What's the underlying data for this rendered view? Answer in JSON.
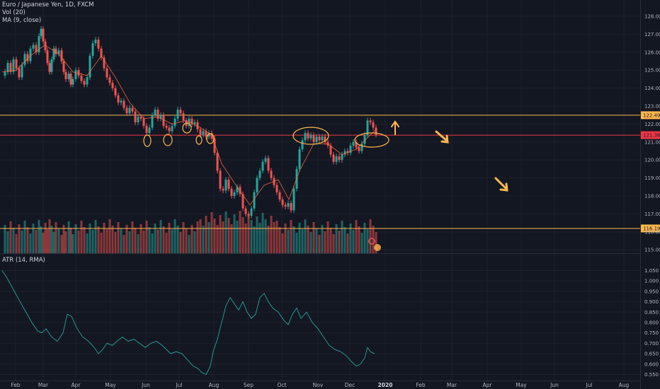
{
  "header": {
    "symbol_line": "Euro / Japanese Yen, 1D, FXCM",
    "vol_line": "Vol (20)",
    "ma_line": "MA (9, close)",
    "atr_line": "ATR (14, RMA)"
  },
  "levels": [
    {
      "value": 122.493,
      "label": "122.493",
      "color": "#ffb74d"
    },
    {
      "value": 121.383,
      "label": "121.383",
      "color": "#f23645"
    },
    {
      "value": 116.19,
      "label": "116.190",
      "color": "#ffb74d"
    }
  ],
  "chart_data": {
    "type": "line",
    "price_axis": {
      "ticks": [
        "128.000",
        "127.000",
        "126.000",
        "125.000",
        "124.000",
        "123.000",
        "122.000",
        "121.000",
        "120.000",
        "119.000",
        "118.000",
        "117.000",
        "116.000",
        "115.000"
      ],
      "ylim": [
        114.6,
        128.5
      ]
    },
    "atr_axis": {
      "ticks": [
        "1.050",
        "1.000",
        "0.950",
        "0.900",
        "0.850",
        "0.800",
        "0.750",
        "0.700",
        "0.650",
        "0.600",
        "0.550"
      ],
      "ylim": [
        0.53,
        1.07
      ]
    },
    "x_labels": [
      {
        "label": "Feb",
        "bold": false
      },
      {
        "label": "Mar",
        "bold": false
      },
      {
        "label": "Apr",
        "bold": false
      },
      {
        "label": "May",
        "bold": false
      },
      {
        "label": "Jun",
        "bold": false
      },
      {
        "label": "Jul",
        "bold": false
      },
      {
        "label": "Aug",
        "bold": false
      },
      {
        "label": "Sep",
        "bold": false
      },
      {
        "label": "Oct",
        "bold": false
      },
      {
        "label": "Nov",
        "bold": false
      },
      {
        "label": "Dec",
        "bold": false
      },
      {
        "label": "2020",
        "bold": true
      },
      {
        "label": "Feb",
        "bold": false
      },
      {
        "label": "Mar",
        "bold": false
      },
      {
        "label": "Apr",
        "bold": false
      },
      {
        "label": "May",
        "bold": false
      },
      {
        "label": "Jun",
        "bold": false
      },
      {
        "label": "Jul",
        "bold": false
      },
      {
        "label": "Aug",
        "bold": false
      }
    ],
    "price_path": [
      [
        0,
        124.7
      ],
      [
        4,
        124.9
      ],
      [
        8,
        125.4
      ],
      [
        12,
        124.9
      ],
      [
        16,
        125.6
      ],
      [
        20,
        125.1
      ],
      [
        24,
        124.6
      ],
      [
        28,
        125.3
      ],
      [
        32,
        125.9
      ],
      [
        36,
        125.5
      ],
      [
        40,
        126.2
      ],
      [
        44,
        126.4
      ],
      [
        48,
        126.0
      ],
      [
        52,
        126.9
      ],
      [
        55,
        127.3
      ],
      [
        58,
        126.6
      ],
      [
        61,
        126.1
      ],
      [
        64,
        125.4
      ],
      [
        67,
        124.9
      ],
      [
        70,
        125.6
      ],
      [
        73,
        126.2
      ],
      [
        76,
        125.9
      ],
      [
        80,
        126.1
      ],
      [
        84,
        125.5
      ],
      [
        87,
        124.9
      ],
      [
        90,
        124.5
      ],
      [
        94,
        124.8
      ],
      [
        97,
        124.2
      ],
      [
        100,
        124.5
      ],
      [
        104,
        125.0
      ],
      [
        108,
        124.7
      ],
      [
        112,
        124.4
      ],
      [
        116,
        124.2
      ],
      [
        120,
        124.6
      ],
      [
        124,
        125.8
      ],
      [
        128,
        126.5
      ],
      [
        132,
        126.7
      ],
      [
        136,
        126.2
      ],
      [
        140,
        125.7
      ],
      [
        144,
        125.1
      ],
      [
        148,
        124.6
      ],
      [
        152,
        124.3
      ],
      [
        156,
        124.0
      ],
      [
        160,
        123.6
      ],
      [
        164,
        123.2
      ],
      [
        168,
        123.3
      ],
      [
        172,
        122.9
      ],
      [
        176,
        122.6
      ],
      [
        180,
        122.9
      ],
      [
        184,
        122.7
      ],
      [
        188,
        122.1
      ],
      [
        192,
        122.4
      ],
      [
        196,
        122.3
      ],
      [
        200,
        121.9
      ],
      [
        204,
        121.5
      ],
      [
        208,
        121.8
      ],
      [
        212,
        122.5
      ],
      [
        216,
        122.8
      ],
      [
        220,
        122.3
      ],
      [
        224,
        122.5
      ],
      [
        228,
        121.9
      ],
      [
        232,
        121.8
      ],
      [
        236,
        121.6
      ],
      [
        240,
        121.9
      ],
      [
        244,
        122.3
      ],
      [
        248,
        122.8
      ],
      [
        252,
        122.6
      ],
      [
        256,
        122.2
      ],
      [
        260,
        121.9
      ],
      [
        264,
        122.3
      ],
      [
        268,
        122.0
      ],
      [
        272,
        122.1
      ],
      [
        276,
        121.7
      ],
      [
        280,
        121.4
      ],
      [
        284,
        121.6
      ],
      [
        288,
        121.3
      ],
      [
        292,
        121.5
      ],
      [
        296,
        121.2
      ],
      [
        300,
        120.4
      ],
      [
        304,
        119.4
      ],
      [
        308,
        118.4
      ],
      [
        312,
        118.3
      ],
      [
        316,
        118.9
      ],
      [
        320,
        118.4
      ],
      [
        324,
        118.0
      ],
      [
        328,
        118.2
      ],
      [
        332,
        118.5
      ],
      [
        336,
        118.1
      ],
      [
        340,
        117.3
      ],
      [
        344,
        117.0
      ],
      [
        348,
        116.9
      ],
      [
        352,
        117.3
      ],
      [
        356,
        118.2
      ],
      [
        360,
        119.0
      ],
      [
        364,
        119.4
      ],
      [
        368,
        119.9
      ],
      [
        372,
        120.1
      ],
      [
        376,
        119.4
      ],
      [
        380,
        119.0
      ],
      [
        384,
        118.6
      ],
      [
        388,
        118.2
      ],
      [
        392,
        117.8
      ],
      [
        396,
        117.5
      ],
      [
        400,
        117.4
      ],
      [
        404,
        117.6
      ],
      [
        408,
        117.2
      ],
      [
        412,
        118.4
      ],
      [
        416,
        119.5
      ],
      [
        420,
        120.6
      ],
      [
        424,
        121.1
      ],
      [
        428,
        121.5
      ],
      [
        432,
        121.2
      ],
      [
        436,
        121.4
      ],
      [
        440,
        121.0
      ],
      [
        444,
        121.3
      ],
      [
        448,
        121.1
      ],
      [
        452,
        121.3
      ],
      [
        456,
        121.0
      ],
      [
        460,
        120.8
      ],
      [
        464,
        120.3
      ],
      [
        468,
        119.9
      ],
      [
        472,
        120.2
      ],
      [
        476,
        120.0
      ],
      [
        480,
        120.3
      ],
      [
        484,
        120.5
      ],
      [
        488,
        120.4
      ],
      [
        492,
        120.8
      ],
      [
        496,
        121.0
      ],
      [
        500,
        120.7
      ],
      [
        504,
        120.5
      ],
      [
        508,
        120.9
      ],
      [
        512,
        121.4
      ],
      [
        516,
        122.2
      ],
      [
        520,
        122.1
      ],
      [
        524,
        121.8
      ],
      [
        528,
        121.4
      ]
    ],
    "ma_path": [
      [
        0,
        124.9
      ],
      [
        20,
        125.0
      ],
      [
        40,
        125.8
      ],
      [
        60,
        126.4
      ],
      [
        80,
        125.9
      ],
      [
        100,
        124.9
      ],
      [
        120,
        124.7
      ],
      [
        140,
        125.8
      ],
      [
        160,
        124.6
      ],
      [
        180,
        123.2
      ],
      [
        200,
        122.3
      ],
      [
        220,
        122.4
      ],
      [
        240,
        122.0
      ],
      [
        260,
        122.2
      ],
      [
        280,
        121.8
      ],
      [
        296,
        121.4
      ],
      [
        310,
        119.8
      ],
      [
        330,
        118.6
      ],
      [
        350,
        117.5
      ],
      [
        370,
        118.6
      ],
      [
        390,
        118.9
      ],
      [
        405,
        117.8
      ],
      [
        420,
        119.4
      ],
      [
        440,
        120.9
      ],
      [
        460,
        120.9
      ],
      [
        480,
        120.3
      ],
      [
        500,
        120.6
      ],
      [
        515,
        121.2
      ],
      [
        528,
        121.7
      ]
    ],
    "atr_path": [
      [
        0,
        1.05
      ],
      [
        6,
        1.02
      ],
      [
        14,
        0.97
      ],
      [
        22,
        0.92
      ],
      [
        32,
        0.86
      ],
      [
        42,
        0.8
      ],
      [
        50,
        0.76
      ],
      [
        56,
        0.75
      ],
      [
        62,
        0.77
      ],
      [
        70,
        0.73
      ],
      [
        78,
        0.71
      ],
      [
        86,
        0.75
      ],
      [
        92,
        0.84
      ],
      [
        98,
        0.83
      ],
      [
        106,
        0.77
      ],
      [
        114,
        0.73
      ],
      [
        122,
        0.71
      ],
      [
        130,
        0.68
      ],
      [
        136,
        0.65
      ],
      [
        142,
        0.67
      ],
      [
        148,
        0.7
      ],
      [
        156,
        0.69
      ],
      [
        162,
        0.71
      ],
      [
        170,
        0.73
      ],
      [
        178,
        0.71
      ],
      [
        186,
        0.72
      ],
      [
        194,
        0.7
      ],
      [
        202,
        0.68
      ],
      [
        210,
        0.7
      ],
      [
        218,
        0.71
      ],
      [
        226,
        0.69
      ],
      [
        232,
        0.67
      ],
      [
        238,
        0.65
      ],
      [
        246,
        0.66
      ],
      [
        254,
        0.65
      ],
      [
        262,
        0.62
      ],
      [
        270,
        0.59
      ],
      [
        276,
        0.58
      ],
      [
        282,
        0.56
      ],
      [
        288,
        0.55
      ],
      [
        294,
        0.59
      ],
      [
        298,
        0.66
      ],
      [
        304,
        0.72
      ],
      [
        310,
        0.8
      ],
      [
        316,
        0.88
      ],
      [
        322,
        0.92
      ],
      [
        328,
        0.89
      ],
      [
        334,
        0.86
      ],
      [
        340,
        0.9
      ],
      [
        346,
        0.85
      ],
      [
        352,
        0.82
      ],
      [
        358,
        0.84
      ],
      [
        364,
        0.92
      ],
      [
        370,
        0.94
      ],
      [
        376,
        0.9
      ],
      [
        382,
        0.87
      ],
      [
        390,
        0.85
      ],
      [
        398,
        0.81
      ],
      [
        404,
        0.79
      ],
      [
        410,
        0.84
      ],
      [
        416,
        0.87
      ],
      [
        422,
        0.82
      ],
      [
        430,
        0.85
      ],
      [
        438,
        0.8
      ],
      [
        446,
        0.77
      ],
      [
        454,
        0.73
      ],
      [
        462,
        0.69
      ],
      [
        470,
        0.67
      ],
      [
        478,
        0.66
      ],
      [
        486,
        0.64
      ],
      [
        494,
        0.61
      ],
      [
        500,
        0.59
      ],
      [
        506,
        0.6
      ],
      [
        512,
        0.63
      ],
      [
        516,
        0.68
      ],
      [
        520,
        0.66
      ],
      [
        526,
        0.65
      ]
    ]
  }
}
